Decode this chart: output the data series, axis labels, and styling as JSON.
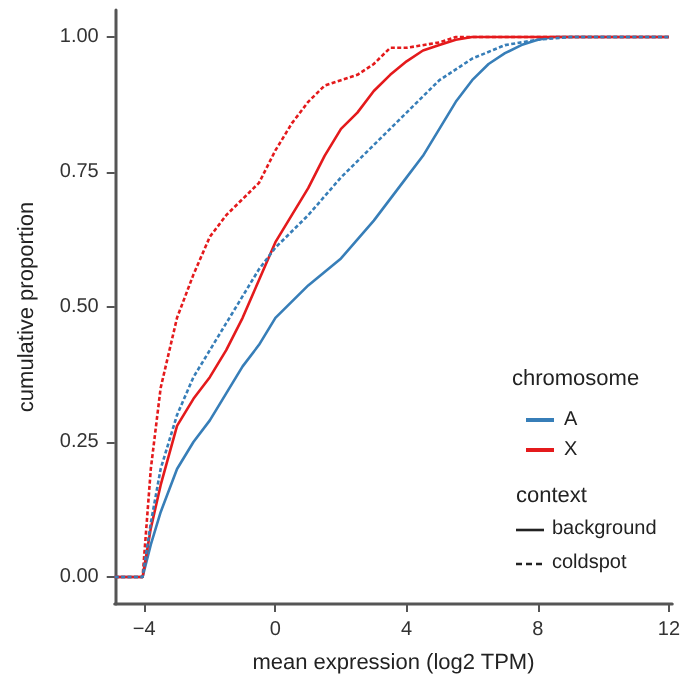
{
  "chart_data": {
    "type": "line",
    "xlabel": "mean expression (log2 TPM)",
    "ylabel": "cumulative proportion",
    "legend_title": "chromosome",
    "legend": "right",
    "grid": false,
    "marker": "none",
    "xlim": [
      -4.9,
      12.1
    ],
    "ylim": [
      -0.05,
      1.05
    ],
    "xticks": [
      {
        "value": -4,
        "label": "−4"
      },
      0,
      4,
      8,
      12
    ],
    "yticks": [
      {
        "value": 0,
        "label": "0.00"
      },
      {
        "value": 0.25,
        "label": "0.25"
      },
      {
        "value": 0.5,
        "label": "0.50"
      },
      {
        "value": 0.75,
        "label": "0.75"
      },
      {
        "value": 1,
        "label": "1.00"
      }
    ],
    "annotations": [
      "context",
      "background",
      "coldspot"
    ],
    "series": [
      {
        "name": "A",
        "color": "#377eb8",
        "line_style": "solid",
        "x": [
          -4.9,
          -4.05,
          -3.8,
          -3.5,
          -3,
          -2.5,
          -2,
          -1.5,
          -1,
          -0.5,
          0,
          1,
          2,
          3,
          4,
          4.5,
          5,
          5.5,
          6,
          6.5,
          7,
          7.5,
          8,
          8.5,
          9,
          12
        ],
        "values": [
          0,
          0,
          0.06,
          0.12,
          0.2,
          0.25,
          0.29,
          0.34,
          0.39,
          0.43,
          0.48,
          0.54,
          0.59,
          0.66,
          0.74,
          0.78,
          0.83,
          0.88,
          0.92,
          0.95,
          0.97,
          0.985,
          0.995,
          1,
          1,
          1
        ]
      },
      {
        "name": "X",
        "color": "#e41a1c",
        "line_style": "solid",
        "x": [
          -4.9,
          -4.05,
          -3.8,
          -3.5,
          -3,
          -2.5,
          -2,
          -1.5,
          -1,
          -0.5,
          0,
          0.5,
          1,
          1.5,
          2,
          2.5,
          3,
          3.5,
          4,
          4.5,
          5,
          5.5,
          6,
          12
        ],
        "values": [
          0,
          0,
          0.09,
          0.17,
          0.28,
          0.33,
          0.37,
          0.42,
          0.48,
          0.55,
          0.62,
          0.67,
          0.72,
          0.78,
          0.83,
          0.86,
          0.9,
          0.93,
          0.955,
          0.975,
          0.985,
          0.995,
          1,
          1
        ]
      },
      {
        "color": "#e41a1c",
        "line_style": "dashed",
        "x": [
          -4.9,
          -4.05,
          -3.8,
          -3.5,
          -3,
          -2.5,
          -2,
          -1.5,
          -1,
          -0.5,
          0,
          0.5,
          1,
          1.5,
          2,
          2.5,
          3,
          3.5,
          4,
          5,
          5.5,
          12
        ],
        "values": [
          0,
          0,
          0.2,
          0.35,
          0.48,
          0.56,
          0.63,
          0.67,
          0.7,
          0.73,
          0.79,
          0.84,
          0.88,
          0.91,
          0.92,
          0.93,
          0.95,
          0.98,
          0.98,
          0.99,
          1,
          1
        ]
      },
      {
        "color": "#377eb8",
        "line_style": "dashed",
        "x": [
          -4.9,
          -4.05,
          -3.8,
          -3.5,
          -3,
          -2.5,
          -2,
          -1.5,
          -1,
          -0.5,
          0,
          1,
          2,
          3,
          4,
          5,
          6,
          7,
          8,
          9,
          12
        ],
        "values": [
          0,
          0,
          0.1,
          0.2,
          0.3,
          0.37,
          0.42,
          0.47,
          0.52,
          0.57,
          0.61,
          0.67,
          0.74,
          0.8,
          0.86,
          0.92,
          0.96,
          0.985,
          0.995,
          1,
          1
        ]
      }
    ]
  }
}
